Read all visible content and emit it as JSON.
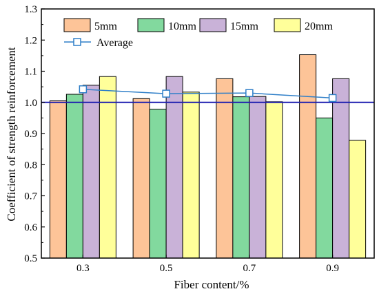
{
  "chart_data": {
    "type": "bar",
    "title": "",
    "xlabel": "Fiber content/%",
    "ylabel": "Coefficient of strength reinforcement",
    "categories": [
      "0.3",
      "0.5",
      "0.7",
      "0.9"
    ],
    "ylim": [
      0.5,
      1.3
    ],
    "yticks": [
      "0.5",
      "0.6",
      "0.7",
      "0.8",
      "0.9",
      "1.0",
      "1.1",
      "1.2",
      "1.3"
    ],
    "series": [
      {
        "name": "5mm",
        "color": "#FDC498",
        "values": [
          1.005,
          1.012,
          1.076,
          1.153
        ]
      },
      {
        "name": "10mm",
        "color": "#82D99E",
        "values": [
          1.026,
          0.978,
          1.018,
          0.95
        ]
      },
      {
        "name": "15mm",
        "color": "#C9B2D8",
        "values": [
          1.055,
          1.083,
          1.019,
          1.076
        ]
      },
      {
        "name": "20mm",
        "color": "#FFFF9A",
        "values": [
          1.083,
          1.033,
          1.002,
          0.878
        ]
      }
    ],
    "line_series": {
      "name": "Average",
      "color": "#2F7FC8",
      "marker": "open-square",
      "values": [
        1.042,
        1.028,
        1.03,
        1.014
      ]
    },
    "reference_line": {
      "y": 1.0,
      "color": "#1F1FB0"
    },
    "grid": false,
    "legend": "top"
  }
}
